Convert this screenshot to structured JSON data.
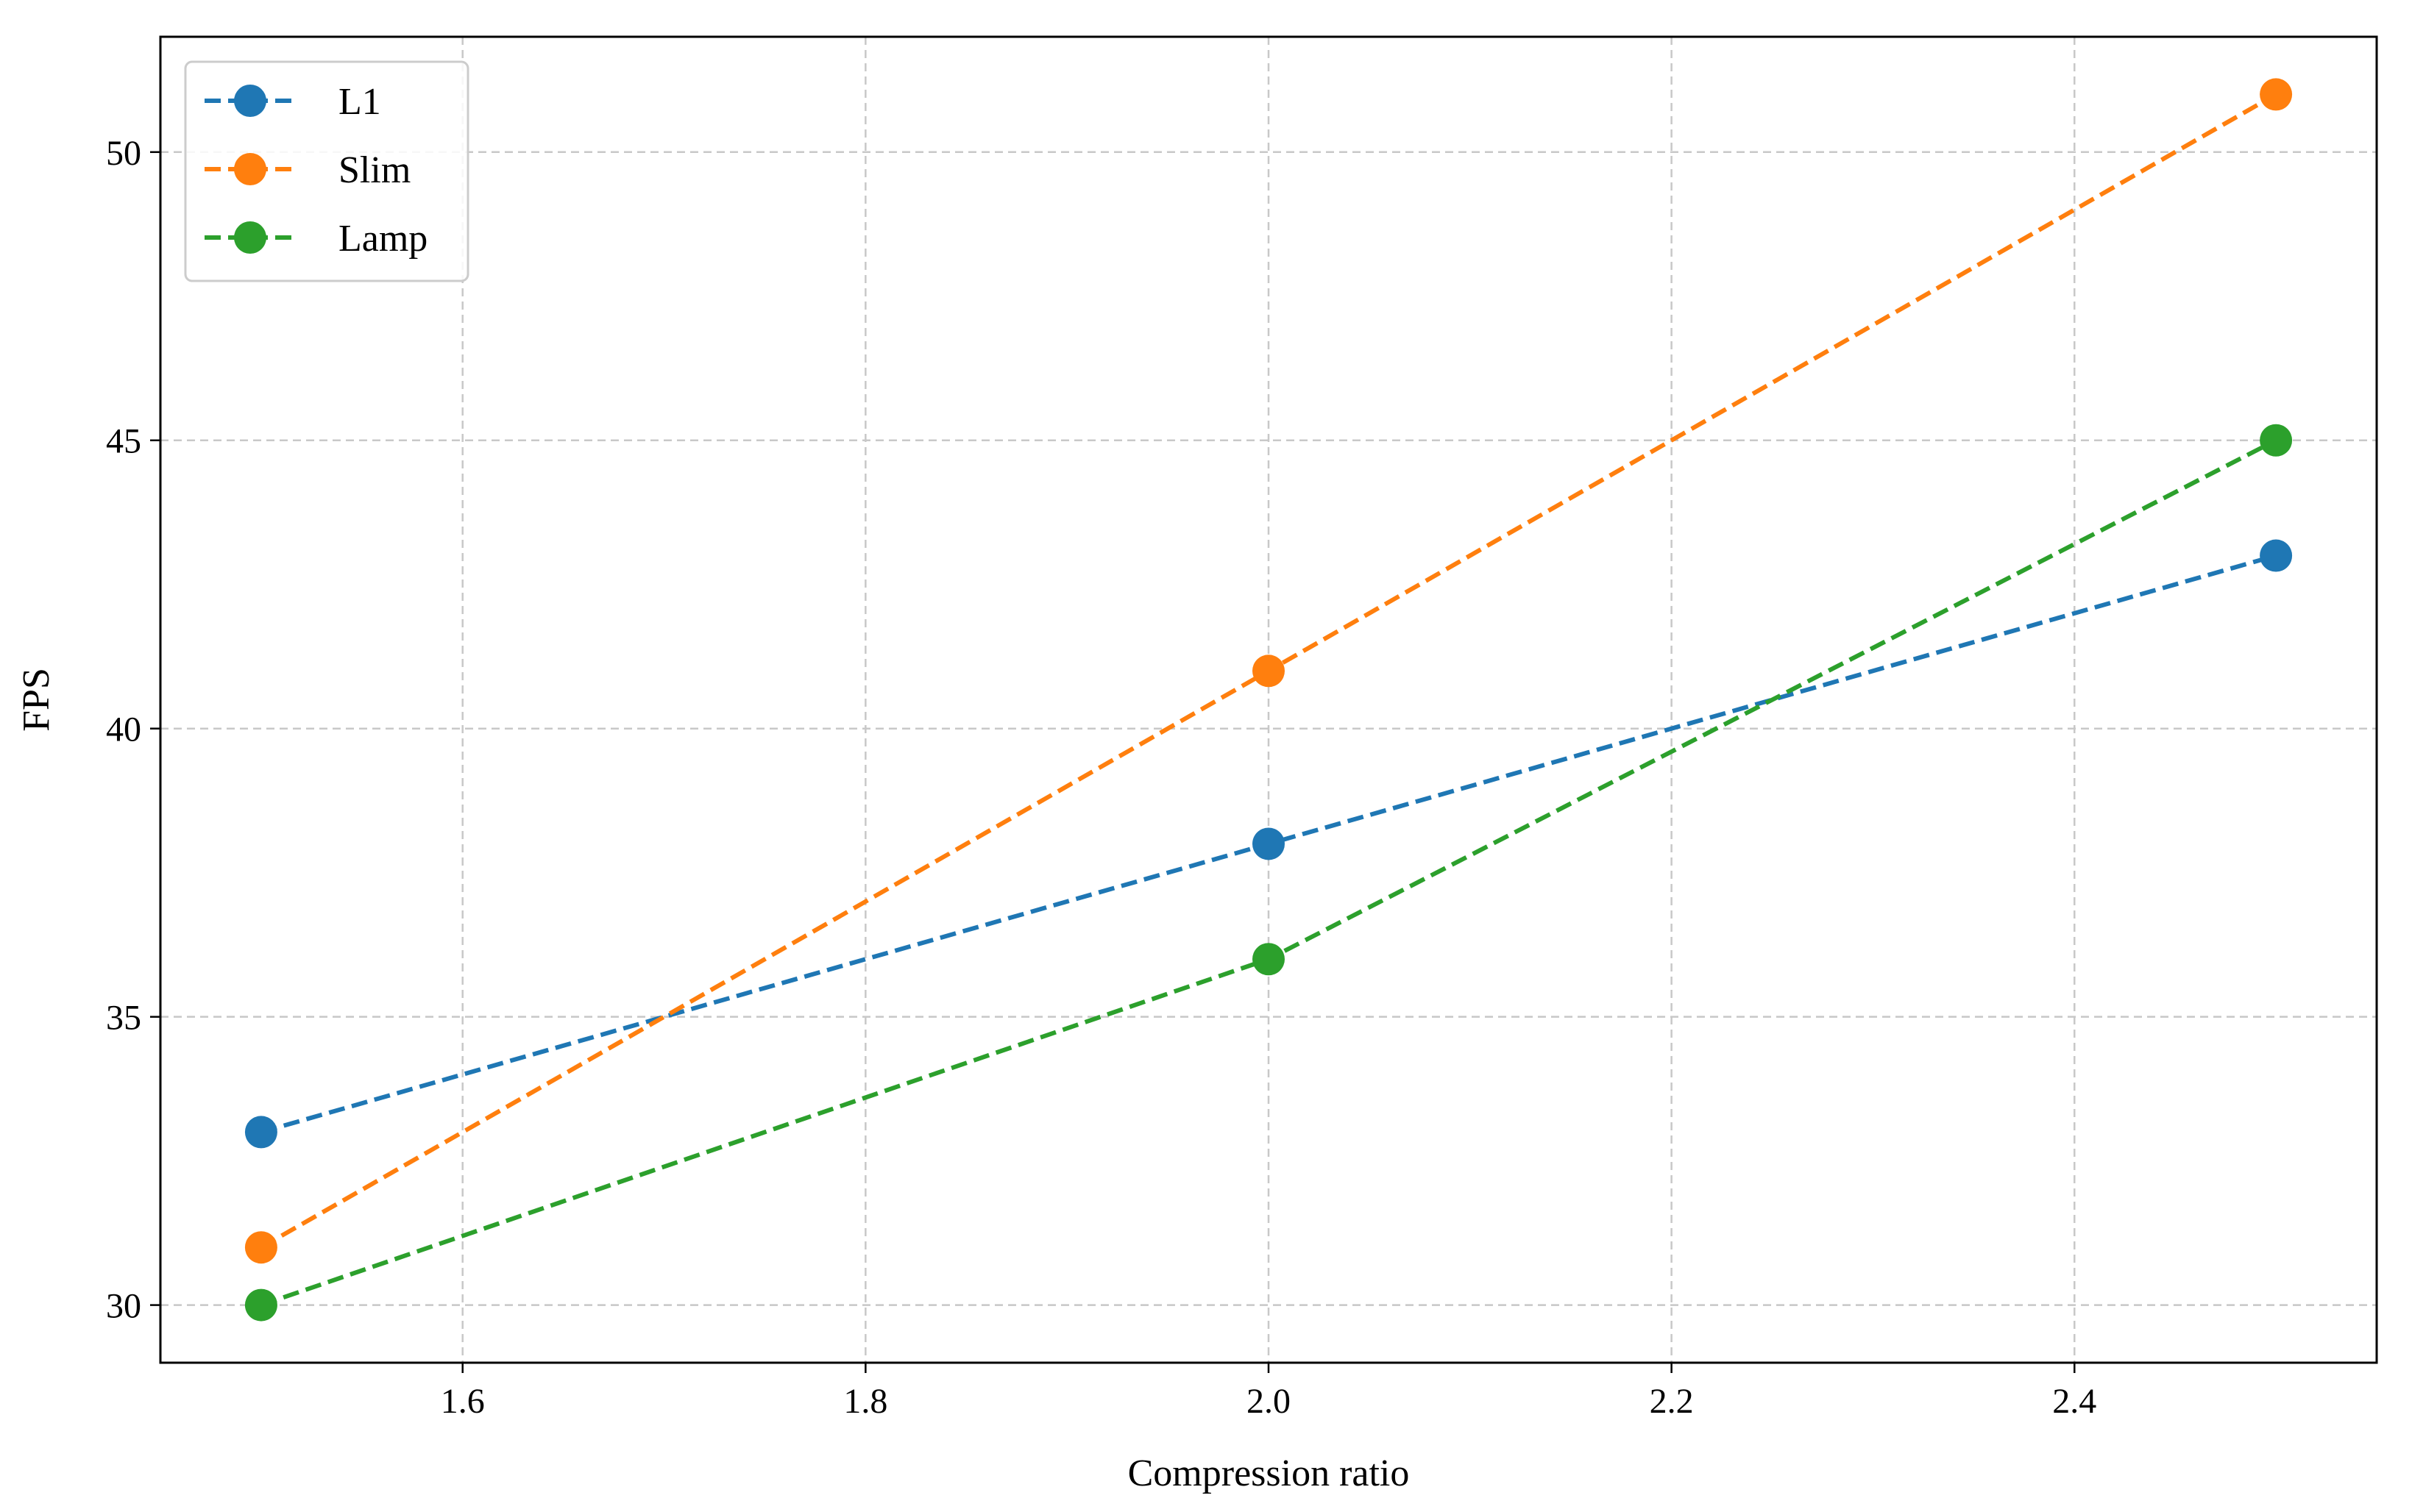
{
  "chart_data": {
    "type": "line",
    "title": "",
    "xlabel": "Compression ratio",
    "ylabel": "FPS",
    "xlim": [
      1.45,
      2.55
    ],
    "ylim": [
      29,
      52
    ],
    "x_ticks": [
      1.6,
      1.8,
      2.0,
      2.2,
      2.4
    ],
    "x_tick_labels": [
      "1.6",
      "1.8",
      "2.0",
      "2.2",
      "2.4"
    ],
    "y_ticks": [
      30,
      35,
      40,
      45,
      50
    ],
    "y_tick_labels": [
      "30",
      "35",
      "40",
      "45",
      "50"
    ],
    "grid": true,
    "legend_position": "top-left",
    "series": [
      {
        "name": "L1",
        "color": "#1f77b4",
        "x": [
          1.5,
          2.0,
          2.5
        ],
        "y": [
          33,
          38,
          43
        ]
      },
      {
        "name": "Slim",
        "color": "#ff7f0e",
        "x": [
          1.5,
          2.0,
          2.5
        ],
        "y": [
          31,
          41,
          51
        ]
      },
      {
        "name": "Lamp",
        "color": "#2ca02c",
        "x": [
          1.5,
          2.0,
          2.5
        ],
        "y": [
          30,
          36,
          45
        ]
      }
    ]
  }
}
